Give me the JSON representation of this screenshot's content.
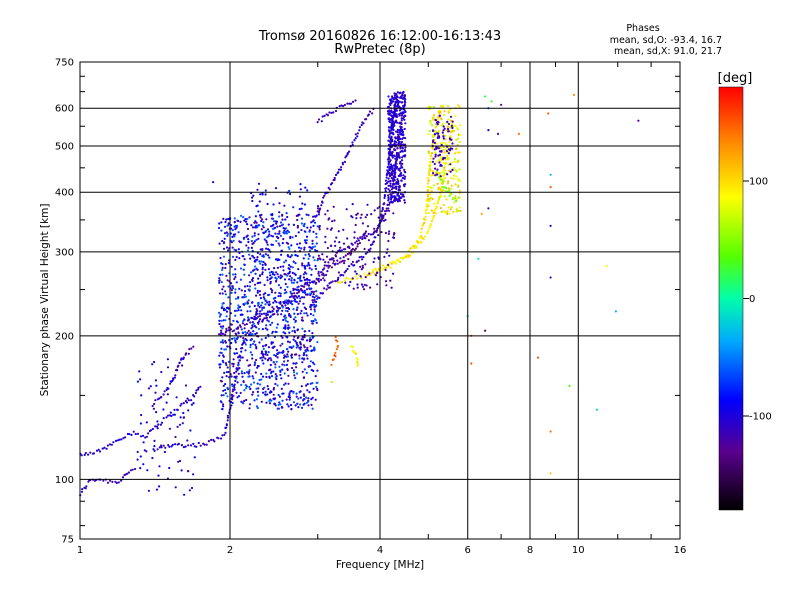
{
  "chart_data": {
    "type": "scatter",
    "title": "Tromsø 20160826 16:12:00-16:13:43",
    "subtitle": "RwPretec (8p)",
    "xlabel": "Frequency [MHz]",
    "ylabel": "Stationary phase Virtual Height [km]",
    "x_scale": "log",
    "y_scale": "log",
    "xlim": [
      1,
      16
    ],
    "ylim": [
      75,
      750
    ],
    "x_ticks": [
      1,
      2,
      4,
      6,
      8,
      10,
      16
    ],
    "y_ticks": [
      75,
      100,
      200,
      300,
      400,
      500,
      600,
      750
    ],
    "grid": true,
    "phase_stats": {
      "title": "Phases",
      "line_o": "mean, sd,O: -93.4, 16.7",
      "line_x": "mean, sd,X:  91.0, 21.7"
    },
    "colorbar": {
      "label": "[deg]",
      "range": [
        -180,
        180
      ],
      "ticks": [
        100,
        0,
        -100
      ]
    },
    "traces": [
      {
        "points": [
          [
            1.0,
            93
          ],
          [
            1.05,
            100
          ],
          [
            1.1,
            100
          ],
          [
            1.15,
            99
          ],
          [
            1.2,
            99
          ],
          [
            1.22,
            101
          ],
          [
            1.25,
            104
          ],
          [
            1.3,
            105
          ]
        ],
        "phase": -110
      },
      {
        "points": [
          [
            1.0,
            112
          ],
          [
            1.05,
            113
          ],
          [
            1.1,
            115
          ],
          [
            1.15,
            118
          ],
          [
            1.2,
            122
          ],
          [
            1.27,
            125
          ],
          [
            1.35,
            123
          ],
          [
            1.4,
            128
          ],
          [
            1.5,
            135
          ],
          [
            1.6,
            143
          ],
          [
            1.7,
            150
          ],
          [
            1.75,
            158
          ]
        ],
        "phase": -105
      },
      {
        "points": [
          [
            1.4,
            115
          ],
          [
            1.5,
            118
          ],
          [
            1.6,
            118
          ],
          [
            1.7,
            118
          ],
          [
            1.8,
            119
          ],
          [
            1.9,
            122
          ],
          [
            1.95,
            125
          ],
          [
            2.0,
            140
          ],
          [
            2.05,
            160
          ],
          [
            2.1,
            185
          ],
          [
            2.15,
            200
          ],
          [
            2.3,
            215
          ],
          [
            2.5,
            225
          ],
          [
            2.7,
            240
          ],
          [
            2.9,
            245
          ],
          [
            3.0,
            240
          ]
        ],
        "phase": -105
      },
      {
        "points": [
          [
            1.4,
            143
          ],
          [
            1.5,
            155
          ],
          [
            1.55,
            165
          ],
          [
            1.6,
            180
          ],
          [
            1.7,
            190
          ]
        ],
        "phase": -110
      },
      {
        "points": [
          [
            1.9,
            200
          ],
          [
            2.1,
            210
          ],
          [
            2.5,
            230
          ],
          [
            2.8,
            250
          ],
          [
            3.0,
            262
          ],
          [
            3.1,
            280
          ],
          [
            3.3,
            300
          ],
          [
            3.5,
            310
          ],
          [
            3.9,
            330
          ],
          [
            4.2,
            380
          ],
          [
            4.3,
            450
          ],
          [
            4.4,
            550
          ],
          [
            4.5,
            640
          ]
        ],
        "phase": -115
      },
      {
        "points": [
          [
            2.9,
            230
          ],
          [
            3.1,
            250
          ],
          [
            3.3,
            265
          ],
          [
            3.5,
            280
          ],
          [
            3.8,
            300
          ],
          [
            4.0,
            340
          ],
          [
            4.1,
            400
          ],
          [
            4.2,
            500
          ],
          [
            4.25,
            560
          ],
          [
            4.3,
            620
          ],
          [
            4.35,
            640
          ]
        ],
        "phase": -105
      },
      {
        "points": [
          [
            3.3,
            260
          ],
          [
            3.6,
            265
          ],
          [
            3.9,
            272
          ],
          [
            4.2,
            280
          ],
          [
            4.5,
            292
          ],
          [
            4.8,
            320
          ],
          [
            4.95,
            360
          ],
          [
            5.0,
            420
          ],
          [
            5.1,
            500
          ],
          [
            5.2,
            560
          ],
          [
            5.3,
            600
          ]
        ],
        "phase": 100
      },
      {
        "points": [
          [
            3.8,
            270
          ],
          [
            4.2,
            285
          ],
          [
            4.6,
            295
          ],
          [
            5.0,
            330
          ],
          [
            5.3,
            400
          ],
          [
            5.5,
            500
          ],
          [
            5.6,
            560
          ]
        ],
        "phase": 90
      },
      {
        "points": [
          [
            5.2,
            440
          ],
          [
            5.4,
            410
          ],
          [
            5.6,
            390
          ],
          [
            5.8,
            385
          ]
        ],
        "phase": 40
      },
      {
        "points": [
          [
            2.7,
            250
          ],
          [
            3.0,
            260
          ],
          [
            3.2,
            280
          ],
          [
            3.4,
            290
          ],
          [
            3.6,
            310
          ],
          [
            3.8,
            340
          ]
        ],
        "phase": -125
      },
      {
        "points": [
          [
            2.9,
            340
          ],
          [
            3.1,
            390
          ],
          [
            3.3,
            440
          ],
          [
            3.5,
            500
          ],
          [
            3.7,
            560
          ],
          [
            3.9,
            600
          ]
        ],
        "phase": -110
      },
      {
        "points": [
          [
            3.0,
            560
          ],
          [
            3.2,
            590
          ],
          [
            3.4,
            610
          ],
          [
            3.6,
            620
          ]
        ],
        "phase": -110
      },
      {
        "points": [
          [
            3.5,
            190
          ],
          [
            3.6,
            180
          ],
          [
            3.6,
            170
          ]
        ],
        "phase": 90
      },
      {
        "points": [
          [
            3.2,
            175
          ],
          [
            3.3,
            190
          ],
          [
            3.25,
            200
          ]
        ],
        "phase": 150
      }
    ],
    "clouds": [
      {
        "f": [
          1.9,
          3.0
        ],
        "h": [
          140,
          360
        ],
        "phase": [
          -130,
          -50
        ],
        "n": 1100
      },
      {
        "f": [
          2.2,
          2.9
        ],
        "h": [
          180,
          420
        ],
        "phase": [
          -110,
          -70
        ],
        "n": 220
      },
      {
        "f": [
          4.15,
          4.5
        ],
        "h": [
          380,
          650
        ],
        "phase": [
          -120,
          -90
        ],
        "n": 450
      },
      {
        "f": [
          5.0,
          5.8
        ],
        "h": [
          360,
          610
        ],
        "phase": [
          60,
          120
        ],
        "n": 220
      },
      {
        "f": [
          5.1,
          5.6
        ],
        "h": [
          430,
          580
        ],
        "phase": [
          -130,
          -100
        ],
        "n": 80
      },
      {
        "f": [
          1.3,
          1.7
        ],
        "h": [
          92,
          180
        ],
        "phase": [
          -120,
          -80
        ],
        "n": 80
      },
      {
        "f": [
          3.0,
          4.3
        ],
        "h": [
          250,
          380
        ],
        "phase": [
          -140,
          -100
        ],
        "n": 160
      }
    ],
    "scattered": [
      {
        "x": 6.1,
        "y": 175,
        "phase": 150
      },
      {
        "x": 6.1,
        "y": 200,
        "phase": 160
      },
      {
        "x": 6.0,
        "y": 220,
        "phase": -10
      },
      {
        "x": 6.3,
        "y": 290,
        "phase": -10
      },
      {
        "x": 6.5,
        "y": 205,
        "phase": -140
      },
      {
        "x": 6.6,
        "y": 370,
        "phase": -110
      },
      {
        "x": 6.4,
        "y": 360,
        "phase": 120
      },
      {
        "x": 6.5,
        "y": 635,
        "phase": 20
      },
      {
        "x": 6.7,
        "y": 620,
        "phase": 20
      },
      {
        "x": 7.0,
        "y": 610,
        "phase": -130
      },
      {
        "x": 6.6,
        "y": 540,
        "phase": -100
      },
      {
        "x": 6.9,
        "y": 530,
        "phase": -130
      },
      {
        "x": 6.6,
        "y": 600,
        "phase": -60
      },
      {
        "x": 7.6,
        "y": 530,
        "phase": 140
      },
      {
        "x": 8.7,
        "y": 585,
        "phase": 150
      },
      {
        "x": 8.8,
        "y": 435,
        "phase": -30
      },
      {
        "x": 8.8,
        "y": 410,
        "phase": 150
      },
      {
        "x": 8.8,
        "y": 340,
        "phase": -110
      },
      {
        "x": 8.8,
        "y": 265,
        "phase": -120
      },
      {
        "x": 8.3,
        "y": 180,
        "phase": 150
      },
      {
        "x": 8.8,
        "y": 126,
        "phase": 140
      },
      {
        "x": 8.8,
        "y": 103,
        "phase": 110
      },
      {
        "x": 9.6,
        "y": 157,
        "phase": 30
      },
      {
        "x": 9.8,
        "y": 640,
        "phase": 130
      },
      {
        "x": 10.9,
        "y": 140,
        "phase": -20
      },
      {
        "x": 11.4,
        "y": 280,
        "phase": 90
      },
      {
        "x": 11.9,
        "y": 225,
        "phase": -30
      },
      {
        "x": 13.2,
        "y": 565,
        "phase": -120
      },
      {
        "x": 1.85,
        "y": 420,
        "phase": -110
      },
      {
        "x": 3.2,
        "y": 160,
        "phase": 60
      }
    ]
  }
}
